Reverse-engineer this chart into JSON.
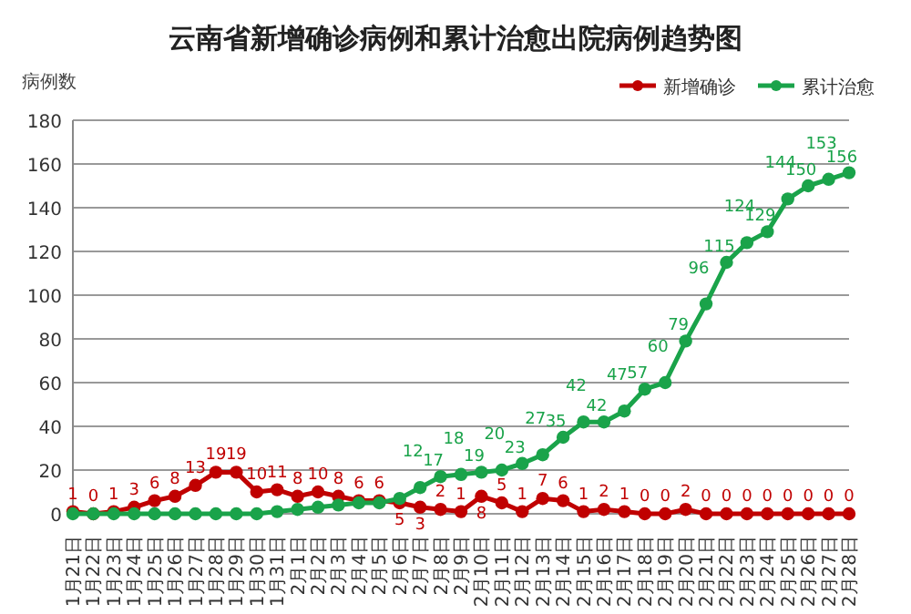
{
  "chart_data": {
    "type": "line",
    "title": "云南省新增确诊病例和累计治愈出院病例趋势图",
    "ylabel": "病例数",
    "categories": [
      "1月21日",
      "1月22日",
      "1月23日",
      "1月24日",
      "1月25日",
      "1月26日",
      "1月27日",
      "1月28日",
      "1月29日",
      "1月30日",
      "1月31日",
      "2月1日",
      "2月2日",
      "2月3日",
      "2月4日",
      "2月5日",
      "2月6日",
      "2月7日",
      "2月8日",
      "2月9日",
      "2月10日",
      "2月11日",
      "2月12日",
      "2月13日",
      "2月14日",
      "2月15日",
      "2月16日",
      "2月17日",
      "2月18日",
      "2月19日",
      "2月20日",
      "2月21日",
      "2月22日",
      "2月23日",
      "2月24日",
      "2月25日",
      "2月26日",
      "2月27日",
      "2月28日"
    ],
    "series": [
      {
        "name": "新增确诊",
        "color": "#c00000",
        "values": [
          1,
          0,
          1,
          3,
          6,
          8,
          13,
          19,
          19,
          10,
          11,
          8,
          10,
          8,
          6,
          6,
          5,
          3,
          2,
          1,
          8,
          5,
          1,
          7,
          6,
          1,
          2,
          1,
          0,
          0,
          2,
          0,
          0,
          0,
          0,
          0,
          0,
          0,
          0
        ],
        "value_labels": [
          "1",
          "0",
          "1",
          "3",
          "6",
          "8",
          "13",
          "19",
          "19",
          "10",
          "11",
          "8",
          "10",
          "8",
          "6",
          "6",
          "5",
          "3",
          "2",
          "1",
          "8",
          "5",
          "1",
          "7",
          "6",
          "1",
          "2",
          "1",
          "0",
          "0",
          "2",
          "0",
          "0",
          "0",
          "0",
          "0",
          "0",
          "0",
          "0"
        ]
      },
      {
        "name": "累计治愈",
        "color": "#1aa34a",
        "values": [
          0,
          0,
          0,
          0,
          0,
          0,
          0,
          0,
          0,
          0,
          1,
          2,
          3,
          4,
          5,
          5,
          7,
          12,
          17,
          18,
          19,
          20,
          23,
          27,
          35,
          42,
          42,
          47,
          57,
          60,
          79,
          96,
          115,
          124,
          129,
          144,
          150,
          153,
          156
        ],
        "value_labels": [
          null,
          null,
          null,
          null,
          null,
          null,
          null,
          null,
          null,
          null,
          null,
          null,
          null,
          null,
          null,
          null,
          null,
          "12",
          "17",
          "18",
          "19",
          "20",
          "23",
          "27",
          "35",
          "42",
          "42",
          "47",
          "57",
          "60",
          "79",
          "96",
          "115",
          "124",
          "129",
          "144",
          "150",
          "153",
          "156"
        ]
      }
    ],
    "ylim": [
      0,
      180
    ],
    "yticks": [
      0,
      20,
      40,
      60,
      80,
      100,
      120,
      140,
      160,
      180
    ],
    "grid": "y",
    "legend": "top right",
    "marker": "circle"
  }
}
